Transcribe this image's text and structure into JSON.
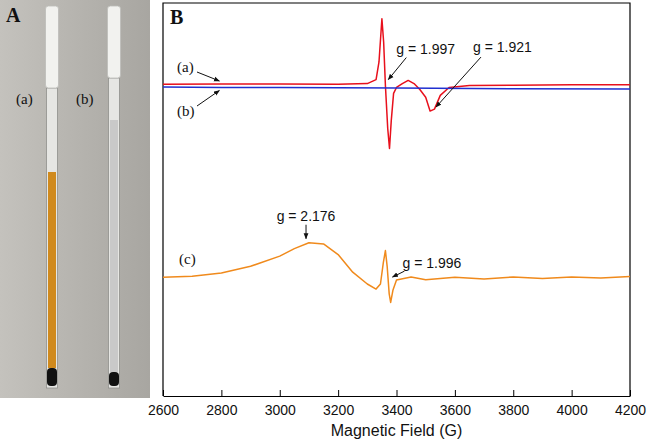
{
  "photo": {
    "label": "A",
    "tubes": [
      "(a)",
      "(b)"
    ]
  },
  "chart_data": {
    "type": "line",
    "label": "B",
    "x_label": "Magnetic Field (G)",
    "xlim": [
      2600,
      4200
    ],
    "xticks": [
      2600,
      2800,
      3000,
      3200,
      3400,
      3600,
      3800,
      4000,
      4200
    ],
    "ylim": [
      0,
      100
    ],
    "tick_labels": "x",
    "series": [
      {
        "name": "(a)",
        "color": "#e8101c",
        "x": [
          2600,
          2800,
          3000,
          3200,
          3300,
          3330,
          3340,
          3350,
          3356,
          3362,
          3370,
          3376,
          3382,
          3390,
          3400,
          3420,
          3440,
          3460,
          3480,
          3500,
          3515,
          3530,
          3550,
          3580,
          3650,
          3800,
          4000,
          4200
        ],
        "values": [
          79.3,
          79.4,
          79.4,
          79.3,
          79.5,
          80.5,
          85,
          96,
          90,
          79,
          68,
          63,
          70,
          77,
          78.5,
          79.5,
          80.3,
          79.5,
          78,
          76,
          72.5,
          73,
          76.5,
          78.5,
          79,
          79.1,
          79.2,
          79.2
        ]
      },
      {
        "name": "(b)",
        "color": "#2030d0",
        "x": [
          2600,
          2800,
          3000,
          3400,
          3800,
          4200
        ],
        "values": [
          78.6,
          78.5,
          78.5,
          78.4,
          78.2,
          78.1
        ]
      },
      {
        "name": "(c)",
        "color": "#f08a1c",
        "x": [
          2600,
          2700,
          2800,
          2900,
          3000,
          3050,
          3100,
          3150,
          3200,
          3250,
          3300,
          3330,
          3345,
          3355,
          3362,
          3368,
          3375,
          3380,
          3388,
          3400,
          3450,
          3500,
          3600,
          3700,
          3800,
          3900,
          4000,
          4100,
          4200
        ],
        "values": [
          30.2,
          30.5,
          31.3,
          33,
          35.6,
          37.5,
          39,
          38.7,
          36,
          31.5,
          28.5,
          27.2,
          28.5,
          34,
          37,
          33,
          26,
          23.8,
          27,
          29.5,
          30.3,
          29.6,
          30.2,
          29.8,
          30.3,
          29.9,
          30.3,
          30,
          30.4
        ]
      }
    ],
    "annotations": [
      {
        "text": "g = 1.997",
        "x": 3372,
        "y": 79.5
      },
      {
        "text": "g = 1.921",
        "x": 3525,
        "y": 72.5
      },
      {
        "text": "g = 2.176",
        "x": 3090,
        "y": 39
      },
      {
        "text": "g = 1.996",
        "x": 3376,
        "y": 30
      }
    ]
  }
}
